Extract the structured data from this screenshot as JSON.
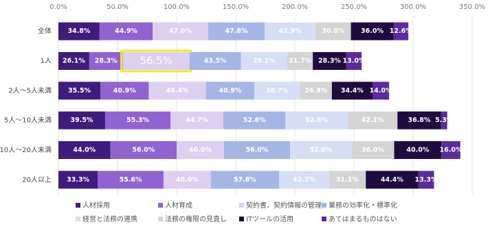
{
  "chart_data": {
    "type": "stacked-barh",
    "categories": [
      "全体",
      "1人",
      "2人～5人未満",
      "5人～10人未満",
      "10人～20人未満",
      "20人以上"
    ],
    "xlim": [
      0,
      350
    ],
    "xticks": [
      {
        "value": 0,
        "label": "0.0%"
      },
      {
        "value": 50,
        "label": "50.0%"
      },
      {
        "value": 100,
        "label": "100.0%"
      },
      {
        "value": 150,
        "label": "150.0%"
      },
      {
        "value": 200,
        "label": "200.0%"
      },
      {
        "value": 250,
        "label": "250.0%"
      },
      {
        "value": 300,
        "label": "300.0%"
      },
      {
        "value": 350,
        "label": "350.0%"
      }
    ],
    "grid": true,
    "highlight": [
      2,
      1
    ],
    "series": [
      {
        "name": "人材採用",
        "color": "#3f1c7c",
        "values": [
          34.8,
          26.1,
          35.5,
          39.5,
          44.0,
          33.3
        ],
        "value_labels": [
          "34.8%",
          "26.1%",
          "35.5%",
          "39.5%",
          "44.0%",
          "33.3%"
        ]
      },
      {
        "name": "人材育成",
        "color": "#9163d0",
        "values": [
          44.9,
          28.3,
          40.9,
          55.3,
          56.0,
          55.6
        ],
        "value_labels": [
          "44.9%",
          "28.3%",
          "40.9%",
          "55.3%",
          "56.0%",
          "55.6%"
        ]
      },
      {
        "name": "契約書、契約情報の管理",
        "color": "#dccff0",
        "values": [
          47.0,
          56.5,
          48.4,
          44.7,
          40.0,
          40.0
        ],
        "value_labels": [
          "47.0%",
          "56.5%",
          "48.4%",
          "44.7%",
          "40.0%",
          "40.0%"
        ]
      },
      {
        "name": "業務の効率化・標準化",
        "color": "#a5b6e4",
        "values": [
          47.8,
          43.5,
          40.9,
          52.6,
          56.0,
          57.8
        ],
        "value_labels": [
          "47.8%",
          "43.5%",
          "40.9%",
          "52.6%",
          "56.0%",
          "57.8%"
        ]
      },
      {
        "name": "経営と法務の連携",
        "color": "#d5def4",
        "values": [
          42.9,
          39.1,
          38.7,
          52.6,
          52.0,
          42.2
        ],
        "value_labels": [
          "42.9%",
          "39.1%",
          "38.7%",
          "52.6%",
          "52.0%",
          "42.2%"
        ]
      },
      {
        "name": "法務の権限の見直し",
        "color": "#d4d4d4",
        "values": [
          30.0,
          21.7,
          26.9,
          42.1,
          36.0,
          31.1
        ],
        "value_labels": [
          "30.0%",
          "21.7%",
          "26.9%",
          "42.1%",
          "36.0%",
          "31.1%"
        ]
      },
      {
        "name": "ITツールの活用",
        "color": "#200b3f",
        "values": [
          36.0,
          28.3,
          34.4,
          36.8,
          40.0,
          44.4
        ],
        "value_labels": [
          "36.0%",
          "28.3%",
          "34.4%",
          "36.8%",
          "40.0%",
          "44.4%"
        ]
      },
      {
        "name": "あてはまるものはない",
        "color": "#5b2b9c",
        "values": [
          12.6,
          13.0,
          14.0,
          5.3,
          16.0,
          13.3
        ],
        "value_labels": [
          "12.6%",
          "13.0%",
          "14.0%",
          "5.3%",
          "16.0%",
          "13.3%"
        ]
      }
    ]
  }
}
